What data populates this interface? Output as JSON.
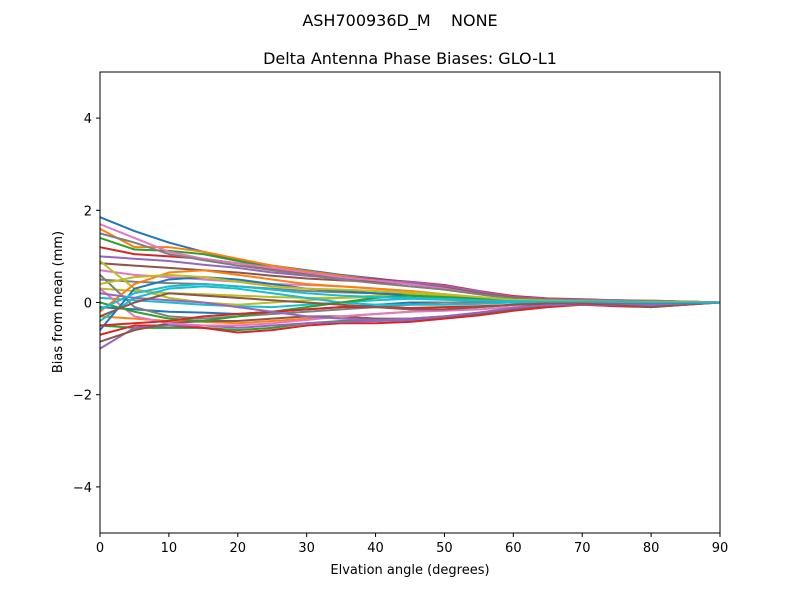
{
  "chart_data": {
    "type": "line",
    "suptitle": "ASH700936D_M    NONE",
    "title": "Delta Antenna Phase Biases: GLO-L1",
    "xlabel": "Elvation angle (degrees)",
    "ylabel": "Bias from mean (mm)",
    "xlim": [
      0,
      90
    ],
    "ylim": [
      -5,
      5
    ],
    "xticks": [
      0,
      10,
      20,
      30,
      40,
      50,
      60,
      70,
      80,
      90
    ],
    "yticks": [
      -4,
      -2,
      0,
      2,
      4
    ],
    "ytick_labels": [
      "−4",
      "−2",
      "0",
      "2",
      "4"
    ],
    "grid": false,
    "x": [
      0,
      5,
      10,
      15,
      20,
      25,
      30,
      35,
      40,
      45,
      50,
      55,
      60,
      65,
      70,
      75,
      80,
      85,
      90
    ],
    "series_colors": [
      "#1f77b4",
      "#ff7f0e",
      "#2ca02c",
      "#d62728",
      "#9467bd",
      "#8c564b",
      "#e377c2",
      "#7f7f7f",
      "#bcbd22",
      "#17becf"
    ],
    "series": [
      {
        "values": [
          1.85,
          1.55,
          1.3,
          1.1,
          0.92,
          0.8,
          0.7,
          0.6,
          0.52,
          0.44,
          0.34,
          0.22,
          0.12,
          0.08,
          0.06,
          0.05,
          0.04,
          0.02,
          0
        ]
      },
      {
        "values": [
          1.6,
          1.2,
          1.2,
          1.1,
          0.95,
          0.8,
          0.68,
          0.58,
          0.5,
          0.42,
          0.32,
          0.2,
          0.1,
          0.07,
          0.06,
          0.05,
          0.04,
          0.02,
          0
        ]
      },
      {
        "values": [
          1.4,
          1.15,
          1.12,
          1.05,
          0.9,
          0.75,
          0.65,
          0.55,
          0.48,
          0.4,
          0.3,
          0.18,
          0.1,
          0.07,
          0.06,
          0.04,
          0.03,
          0.02,
          0
        ]
      },
      {
        "values": [
          1.2,
          1.05,
          1.0,
          0.95,
          0.85,
          0.72,
          0.62,
          0.55,
          0.5,
          0.45,
          0.38,
          0.25,
          0.14,
          0.09,
          0.07,
          0.05,
          0.03,
          0.02,
          0
        ]
      },
      {
        "values": [
          1.0,
          0.95,
          0.9,
          0.82,
          0.75,
          0.65,
          0.58,
          0.52,
          0.48,
          0.44,
          0.36,
          0.24,
          0.12,
          0.08,
          0.06,
          0.05,
          0.03,
          0.02,
          0
        ]
      },
      {
        "values": [
          0.85,
          0.8,
          0.75,
          0.7,
          0.65,
          0.58,
          0.52,
          0.48,
          0.45,
          0.4,
          0.32,
          0.2,
          0.1,
          0.07,
          0.05,
          0.04,
          0.03,
          0.01,
          0
        ]
      },
      {
        "values": [
          0.7,
          0.6,
          0.55,
          0.5,
          0.45,
          0.4,
          0.38,
          0.35,
          0.3,
          0.25,
          0.18,
          0.1,
          0.06,
          0.05,
          0.04,
          0.03,
          0.02,
          0.01,
          0
        ]
      },
      {
        "values": [
          0.5,
          0.45,
          0.42,
          0.4,
          0.35,
          0.3,
          0.25,
          0.22,
          0.2,
          0.18,
          0.15,
          0.1,
          0.05,
          0.04,
          0.03,
          0.02,
          0.01,
          0.01,
          0
        ]
      },
      {
        "values": [
          0.3,
          0.25,
          0.2,
          0.18,
          0.15,
          0.12,
          0.1,
          0.1,
          0.12,
          0.15,
          0.12,
          0.08,
          0.04,
          0.03,
          0.02,
          0.01,
          0.0,
          0.0,
          0
        ]
      },
      {
        "values": [
          0.1,
          0.05,
          0.0,
          -0.05,
          -0.08,
          -0.1,
          -0.05,
          0.0,
          0.05,
          0.08,
          0.06,
          0.03,
          0.01,
          0.0,
          0.0,
          0.0,
          0.0,
          0.0,
          0
        ]
      },
      {
        "values": [
          -0.1,
          -0.15,
          -0.2,
          -0.22,
          -0.25,
          -0.2,
          -0.15,
          -0.1,
          -0.05,
          0.0,
          0.0,
          0.0,
          0.0,
          0.0,
          0.0,
          0.0,
          0.0,
          0.0,
          0
        ]
      },
      {
        "values": [
          -0.3,
          -0.35,
          -0.4,
          -0.42,
          -0.45,
          -0.4,
          -0.35,
          -0.3,
          -0.25,
          -0.2,
          -0.15,
          -0.1,
          -0.05,
          -0.02,
          0.0,
          0.0,
          0.0,
          0.0,
          0
        ]
      },
      {
        "values": [
          -0.5,
          -0.55,
          -0.55,
          -0.55,
          -0.6,
          -0.55,
          -0.45,
          -0.4,
          -0.4,
          -0.38,
          -0.32,
          -0.25,
          -0.15,
          -0.08,
          -0.05,
          -0.05,
          -0.06,
          -0.03,
          0
        ]
      },
      {
        "values": [
          -0.7,
          -0.5,
          -0.5,
          -0.55,
          -0.65,
          -0.6,
          -0.5,
          -0.45,
          -0.45,
          -0.42,
          -0.35,
          -0.28,
          -0.18,
          -0.1,
          -0.05,
          -0.08,
          -0.1,
          -0.05,
          0
        ]
      },
      {
        "values": [
          -1.0,
          -0.55,
          -0.5,
          -0.5,
          -0.55,
          -0.5,
          -0.45,
          -0.42,
          -0.4,
          -0.38,
          -0.3,
          -0.22,
          -0.12,
          -0.06,
          -0.04,
          -0.06,
          -0.08,
          -0.04,
          0
        ]
      },
      {
        "values": [
          -0.85,
          -0.6,
          -0.45,
          -0.4,
          -0.4,
          -0.35,
          -0.3,
          -0.3,
          -0.35,
          -0.35,
          -0.3,
          -0.25,
          -0.15,
          -0.05,
          -0.02,
          -0.05,
          -0.1,
          -0.05,
          0
        ]
      },
      {
        "values": [
          0.3,
          -0.3,
          -0.45,
          -0.5,
          -0.5,
          -0.45,
          -0.38,
          -0.3,
          -0.25,
          -0.2,
          -0.18,
          -0.15,
          -0.1,
          -0.05,
          0.0,
          0.0,
          -0.02,
          -0.01,
          0
        ]
      },
      {
        "values": [
          0.6,
          -0.1,
          -0.3,
          -0.35,
          -0.3,
          -0.25,
          -0.2,
          -0.15,
          -0.1,
          -0.05,
          0.0,
          0.0,
          0.0,
          0.02,
          0.03,
          0.02,
          0.01,
          0.01,
          0
        ]
      },
      {
        "values": [
          0.9,
          0.3,
          0.1,
          0.0,
          -0.05,
          0.0,
          0.05,
          0.1,
          0.15,
          0.18,
          0.15,
          0.1,
          0.05,
          0.03,
          0.02,
          0.01,
          0.0,
          0.0,
          0
        ]
      },
      {
        "values": [
          -0.4,
          0.1,
          0.3,
          0.35,
          0.3,
          0.2,
          0.1,
          0.0,
          -0.05,
          -0.05,
          -0.05,
          -0.03,
          0.0,
          0.02,
          0.03,
          0.02,
          0.01,
          0.01,
          0
        ]
      },
      {
        "values": [
          -0.6,
          0.3,
          0.5,
          0.55,
          0.5,
          0.4,
          0.3,
          0.25,
          0.2,
          0.15,
          0.1,
          0.06,
          0.04,
          0.03,
          0.02,
          0.01,
          0.0,
          0.0,
          0
        ]
      },
      {
        "values": [
          -0.2,
          0.4,
          0.65,
          0.7,
          0.6,
          0.5,
          0.4,
          0.35,
          0.3,
          0.25,
          0.18,
          0.1,
          0.05,
          0.04,
          0.03,
          0.02,
          0.01,
          0.01,
          0
        ]
      },
      {
        "values": [
          0.0,
          -0.2,
          -0.35,
          -0.4,
          -0.3,
          -0.2,
          -0.1,
          0.0,
          0.1,
          0.15,
          0.12,
          0.08,
          0.04,
          0.02,
          0.01,
          0.0,
          0.0,
          0.0,
          0
        ]
      },
      {
        "values": [
          -0.5,
          -0.45,
          -0.4,
          -0.3,
          -0.25,
          -0.2,
          -0.15,
          -0.1,
          -0.1,
          -0.12,
          -0.1,
          -0.08,
          -0.05,
          -0.03,
          -0.02,
          -0.02,
          -0.03,
          -0.01,
          0
        ]
      },
      {
        "values": [
          0.2,
          0.1,
          0.05,
          0.0,
          -0.1,
          -0.2,
          -0.3,
          -0.35,
          -0.38,
          -0.35,
          -0.3,
          -0.22,
          -0.12,
          -0.05,
          0.0,
          -0.02,
          -0.05,
          -0.02,
          0
        ]
      },
      {
        "values": [
          -0.3,
          0.0,
          0.2,
          0.15,
          0.1,
          0.05,
          0.0,
          -0.05,
          -0.1,
          -0.15,
          -0.15,
          -0.1,
          -0.05,
          -0.02,
          0.0,
          0.0,
          -0.01,
          -0.01,
          0
        ]
      },
      {
        "values": [
          1.7,
          1.4,
          1.1,
          0.95,
          0.85,
          0.75,
          0.65,
          0.55,
          0.48,
          0.4,
          0.3,
          0.18,
          0.08,
          0.06,
          0.05,
          0.04,
          0.03,
          0.02,
          0
        ]
      },
      {
        "values": [
          1.5,
          1.3,
          1.05,
          0.92,
          0.8,
          0.7,
          0.6,
          0.5,
          0.42,
          0.35,
          0.28,
          0.18,
          0.09,
          0.06,
          0.05,
          0.04,
          0.03,
          0.02,
          0
        ]
      },
      {
        "values": [
          0.4,
          0.55,
          0.6,
          0.55,
          0.45,
          0.35,
          0.3,
          0.28,
          0.25,
          0.22,
          0.18,
          0.12,
          0.06,
          0.04,
          0.03,
          0.02,
          0.01,
          0.01,
          0
        ]
      },
      {
        "values": [
          -0.15,
          0.2,
          0.35,
          0.4,
          0.35,
          0.28,
          0.2,
          0.15,
          0.12,
          0.1,
          0.08,
          0.05,
          0.03,
          0.02,
          0.02,
          0.01,
          0.0,
          0.0,
          0
        ]
      }
    ]
  }
}
